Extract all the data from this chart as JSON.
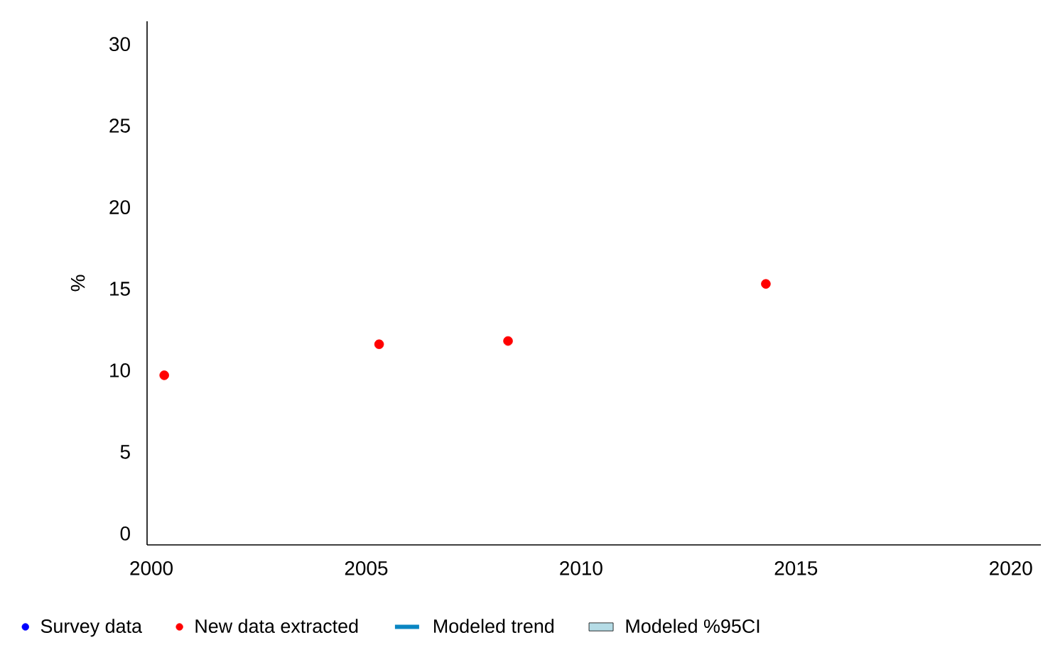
{
  "chart_data": {
    "type": "scatter",
    "ylabel": "%",
    "xlim": [
      1999.9,
      2020.7
    ],
    "xticks": [
      2000,
      2005,
      2010,
      2015,
      2020
    ],
    "ylim": [
      -0.7,
      31.4
    ],
    "yticks": [
      0,
      5,
      10,
      15,
      20,
      25,
      30
    ],
    "marker": "circle",
    "legend": "bottom",
    "grid": false,
    "series": [
      {
        "name": "Survey data",
        "type": "scatter",
        "color": "#0000ff"
      },
      {
        "name": "New data extracted",
        "type": "scatter",
        "color": "#ff0000",
        "x": [
          2000.3,
          2005.3,
          2008.3,
          2014.3
        ],
        "values": [
          9.7,
          11.6,
          11.8,
          15.3
        ]
      },
      {
        "name": "Modeled trend",
        "type": "line",
        "color": "#0a86c2"
      },
      {
        "name": "Modeled %95CI",
        "type": "area",
        "color": "#b5dce6"
      }
    ]
  }
}
